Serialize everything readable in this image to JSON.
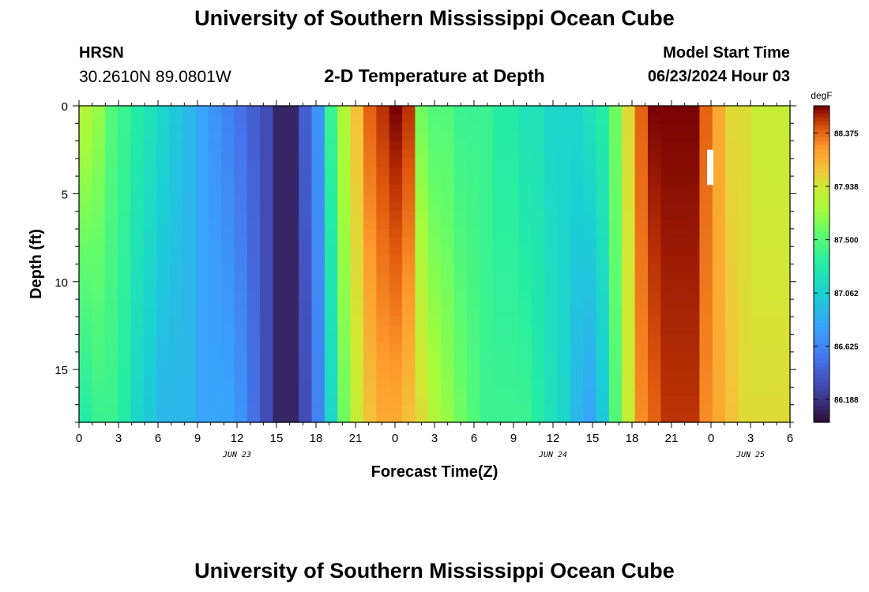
{
  "header": {
    "title": "University of Southern Mississippi Ocean Cube",
    "station": "HRSN",
    "coords": "30.2610N  89.0801W",
    "plot_title": "2-D Temperature at Depth",
    "model_start_label": "Model Start Time",
    "model_start_value": "06/23/2024 Hour 03"
  },
  "footer": {
    "title": "University of Southern Mississippi Ocean Cube"
  },
  "chart_data": {
    "type": "heatmap",
    "title": "2-D Temperature at Depth",
    "xlabel": "Forecast Time(Z)",
    "ylabel": "Depth (ft)",
    "x_tick_labels": [
      "0",
      "3",
      "6",
      "9",
      "12",
      "15",
      "18",
      "21",
      "0",
      "3",
      "6",
      "9",
      "12",
      "15",
      "18",
      "21",
      "0",
      "3",
      "6"
    ],
    "date_labels": [
      {
        "label": "JUN 23",
        "at_tick": 4
      },
      {
        "label": "JUN 24",
        "at_tick": 12
      },
      {
        "label": "JUN 25",
        "at_tick": 17
      }
    ],
    "y_ticks": [
      0,
      5,
      10,
      15
    ],
    "ylim": [
      0,
      18
    ],
    "y_inverted": true,
    "colorbar": {
      "unit": "degF",
      "tick_labels": [
        "88.375",
        "87.938",
        "87.500",
        "87.062",
        "86.625",
        "86.188"
      ],
      "range": [
        86.0,
        88.6
      ]
    },
    "time_hours": [
      0,
      1,
      2,
      3,
      4,
      5,
      6,
      7,
      8,
      9,
      10,
      11,
      12,
      13,
      14,
      15,
      16,
      17,
      18,
      19,
      20,
      21,
      22,
      23,
      24,
      25,
      26,
      27,
      28,
      29,
      30,
      31,
      32,
      33,
      34,
      35,
      36,
      37,
      38,
      39,
      40,
      41,
      42,
      43,
      44,
      45,
      46,
      47,
      48,
      49,
      50,
      51,
      52,
      53,
      54
    ],
    "surface_degF": [
      87.8,
      87.7,
      87.5,
      87.4,
      87.3,
      87.2,
      87.1,
      87.0,
      86.9,
      86.8,
      86.7,
      86.6,
      86.5,
      86.4,
      86.3,
      86.1,
      86.1,
      86.4,
      86.7,
      87.4,
      87.8,
      88.1,
      88.4,
      88.5,
      88.6,
      88.5,
      87.6,
      87.5,
      87.5,
      87.4,
      87.4,
      87.4,
      87.3,
      87.3,
      87.2,
      87.2,
      87.1,
      87.1,
      87.1,
      87.2,
      87.3,
      87.6,
      88.0,
      88.4,
      88.6,
      88.6,
      88.6,
      88.6,
      88.4,
      88.2,
      88.0,
      88.0,
      87.9,
      87.9,
      87.9
    ],
    "bottom_degF": [
      87.3,
      87.4,
      87.4,
      87.3,
      87.1,
      87.0,
      86.9,
      86.9,
      86.9,
      86.8,
      86.8,
      86.8,
      86.7,
      86.5,
      86.3,
      86.1,
      86.1,
      86.3,
      86.6,
      87.1,
      87.6,
      87.9,
      88.1,
      88.2,
      88.2,
      88.1,
      88.0,
      87.8,
      87.7,
      87.6,
      87.5,
      87.4,
      87.4,
      87.4,
      87.4,
      87.3,
      87.2,
      87.1,
      86.9,
      86.8,
      87.0,
      87.5,
      87.9,
      88.3,
      88.4,
      88.5,
      88.5,
      88.5,
      88.3,
      88.2,
      88.1,
      88.0,
      88.0,
      88.0,
      88.0
    ],
    "annotation": "white vertical bar near 23Z JUN 24, depth 2-4 ft"
  }
}
